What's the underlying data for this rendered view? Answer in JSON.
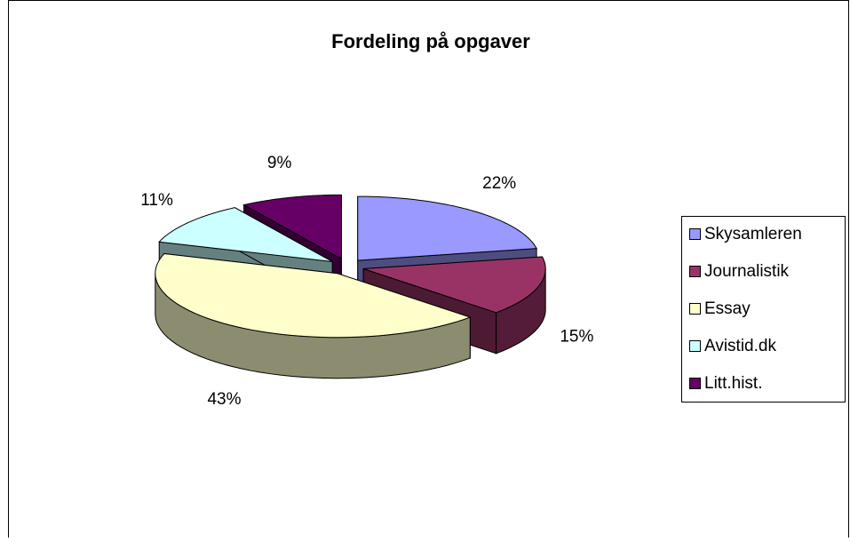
{
  "chart_data": {
    "type": "pie",
    "title": "Fordeling på opgaver",
    "categories": [
      "Skysamleren",
      "Journalistik",
      "Essay",
      "Avistid.dk",
      "Litt.hist."
    ],
    "values": [
      22,
      15,
      43,
      11,
      9
    ],
    "value_labels": [
      "22%",
      "15%",
      "43%",
      "11%",
      "9%"
    ],
    "colors": [
      "#9999ff",
      "#993366",
      "#ffffcc",
      "#ccffff",
      "#660066"
    ],
    "legend": "right"
  }
}
